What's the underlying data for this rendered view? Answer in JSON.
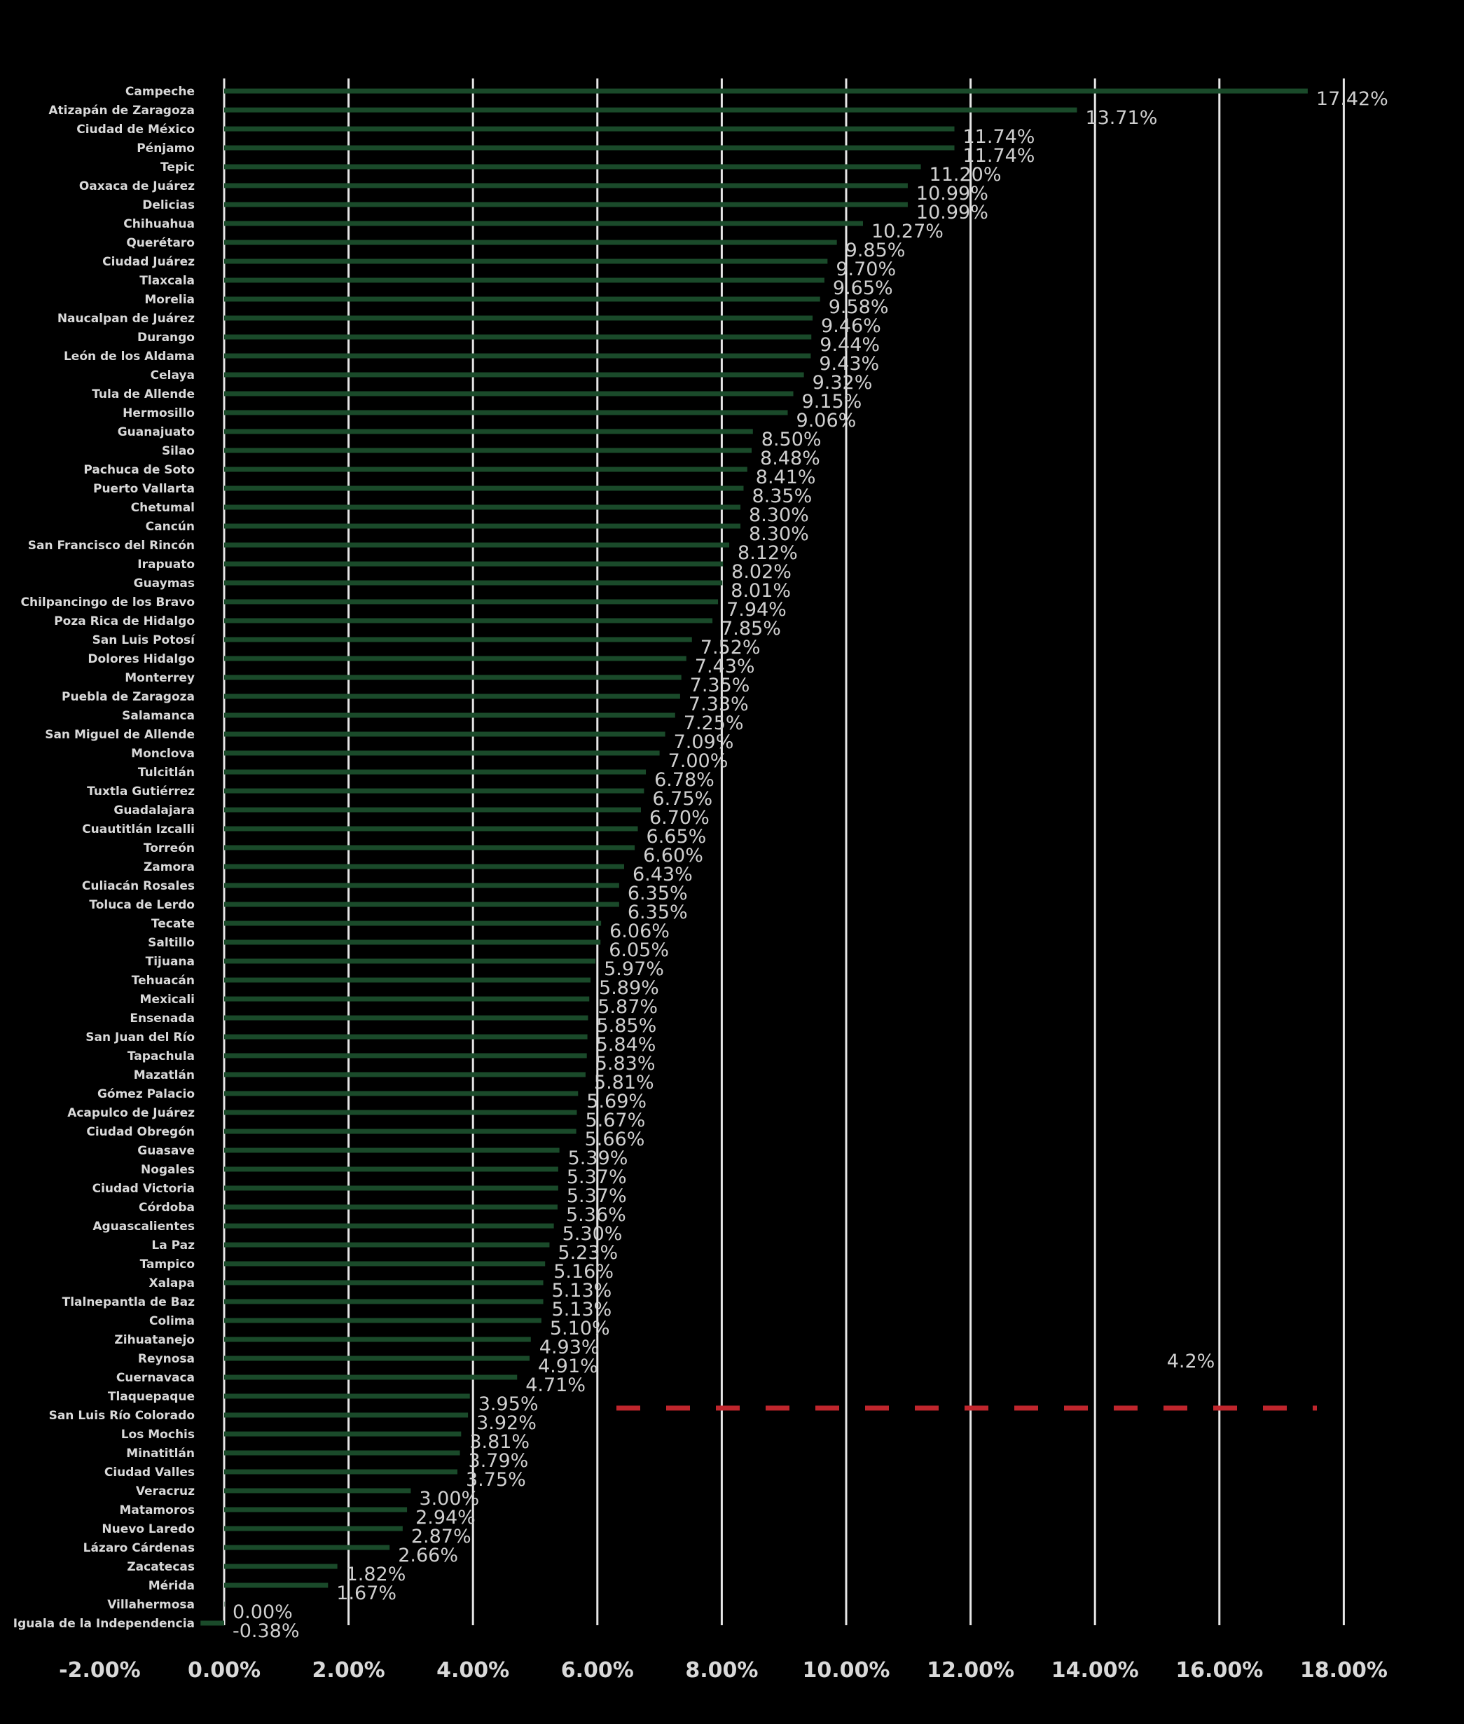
{
  "chart_data": {
    "type": "bar",
    "orientation": "horizontal",
    "colors": {
      "bar": "#1a4a2a",
      "grid": "#e6e6e6",
      "reference": "#c0262d",
      "background": "#000000",
      "text": "#d9d9d9"
    },
    "xlim": [
      -2,
      18
    ],
    "x_ticks": [
      -2,
      0,
      2,
      4,
      6,
      8,
      10,
      12,
      14,
      16,
      18
    ],
    "x_tick_labels": [
      "-2.00%",
      "0.00%",
      "2.00%",
      "4.00%",
      "6.00%",
      "8.00%",
      "10.00%",
      "12.00%",
      "14.00%",
      "16.00%",
      "18.00%"
    ],
    "grid": true,
    "reference_line": {
      "value": 4.2,
      "label": "4.2%",
      "style": "dashed"
    },
    "categories": [
      "Campeche",
      "Atizapán de Zaragoza",
      "Ciudad de México",
      "Pénjamo",
      "Tepic",
      "Oaxaca de Juárez",
      "Delicias",
      "Chihuahua",
      "Querétaro",
      "Ciudad Juárez",
      "Tlaxcala",
      "Morelia",
      "Naucalpan de Juárez",
      "Durango",
      "León de los Aldama",
      "Celaya",
      "Tula de Allende",
      "Hermosillo",
      "Guanajuato",
      "Silao",
      "Pachuca de Soto",
      "Puerto Vallarta",
      "Chetumal",
      "Cancún",
      "San Francisco del Rincón",
      "Irapuato",
      "Guaymas",
      "Chilpancingo de los Bravo",
      "Poza Rica de Hidalgo",
      "San Luis Potosí",
      "Dolores Hidalgo",
      "Monterrey",
      "Puebla de Zaragoza",
      "Salamanca",
      "San Miguel de Allende",
      "Monclova",
      "Tulcitlán",
      "Tuxtla Gutiérrez",
      "Guadalajara",
      "Cuautitlán Izcalli",
      "Torreón",
      "Zamora",
      "Culiacán Rosales",
      "Toluca de Lerdo",
      "Tecate",
      "Saltillo",
      "Tijuana",
      "Tehuacán",
      "Mexicali",
      "Ensenada",
      "San Juan del Río",
      "Tapachula",
      "Mazatlán",
      "Gómez Palacio",
      "Acapulco de Juárez",
      "Ciudad Obregón",
      "Guasave",
      "Nogales",
      "Ciudad Victoria",
      "Córdoba",
      "Aguascalientes",
      "La Paz",
      "Tampico",
      "Xalapa",
      "Tlalnepantla de Baz",
      "Colima",
      "Zihuatanejo",
      "Reynosa",
      "Cuernavaca",
      "Tlaquepaque",
      "San Luis Río Colorado",
      "Los Mochis",
      "Minatitlán",
      "Ciudad Valles",
      "Veracruz",
      "Matamoros",
      "Nuevo Laredo",
      "Lázaro Cárdenas",
      "Zacatecas",
      "Mérida",
      "Villahermosa",
      "Iguala de la Independencia"
    ],
    "values": [
      17.42,
      13.71,
      11.74,
      11.74,
      11.2,
      10.99,
      10.99,
      10.27,
      9.85,
      9.7,
      9.65,
      9.58,
      9.46,
      9.44,
      9.43,
      9.32,
      9.15,
      9.06,
      8.5,
      8.48,
      8.41,
      8.35,
      8.3,
      8.3,
      8.12,
      8.02,
      8.01,
      7.94,
      7.85,
      7.52,
      7.43,
      7.35,
      7.33,
      7.25,
      7.09,
      7.0,
      6.78,
      6.75,
      6.7,
      6.65,
      6.6,
      6.43,
      6.35,
      6.35,
      6.06,
      6.05,
      5.97,
      5.89,
      5.87,
      5.85,
      5.84,
      5.83,
      5.81,
      5.69,
      5.67,
      5.66,
      5.39,
      5.37,
      5.37,
      5.36,
      5.3,
      5.23,
      5.16,
      5.13,
      5.13,
      5.1,
      4.93,
      4.91,
      4.71,
      3.95,
      3.92,
      3.81,
      3.79,
      3.75,
      3.0,
      2.94,
      2.87,
      2.66,
      1.82,
      1.67,
      0.0,
      -0.38
    ],
    "value_labels": [
      "17.42%",
      "13.71%",
      "11.74%",
      "11.74%",
      "11.20%",
      "10.99%",
      "10.99%",
      "10.27%",
      "9.85%",
      "9.70%",
      "9.65%",
      "9.58%",
      "9.46%",
      "9.44%",
      "9.43%",
      "9.32%",
      "9.15%",
      "9.06%",
      "8.50%",
      "8.48%",
      "8.41%",
      "8.35%",
      "8.30%",
      "8.30%",
      "8.12%",
      "8.02%",
      "8.01%",
      "7.94%",
      "7.85%",
      "7.52%",
      "7.43%",
      "7.35%",
      "7.33%",
      "7.25%",
      "7.09%",
      "7.00%",
      "6.78%",
      "6.75%",
      "6.70%",
      "6.65%",
      "6.60%",
      "6.43%",
      "6.35%",
      "6.35%",
      "6.06%",
      "6.05%",
      "5.97%",
      "5.89%",
      "5.87%",
      "5.85%",
      "5.84%",
      "5.83%",
      "5.81%",
      "5.69%",
      "5.67%",
      "5.66%",
      "5.39%",
      "5.37%",
      "5.37%",
      "5.36%",
      "5.30%",
      "5.23%",
      "5.16%",
      "5.13%",
      "5.13%",
      "5.10%",
      "4.93%",
      "4.91%",
      "4.71%",
      "3.95%",
      "3.92%",
      "3.81%",
      "3.79%",
      "3.75%",
      "3.00%",
      "2.94%",
      "2.87%",
      "2.66%",
      "1.82%",
      "1.67%",
      "0.00%",
      "-0.38%"
    ]
  }
}
